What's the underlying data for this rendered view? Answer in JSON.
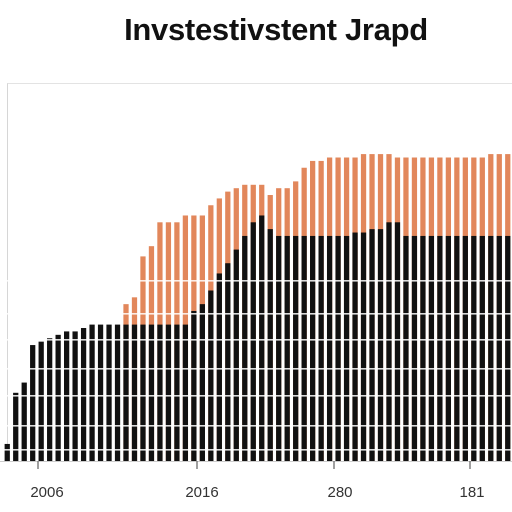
{
  "chart_data": {
    "type": "bar",
    "title": "Invstestivstent Jrapd",
    "xlabel": "",
    "ylabel": "",
    "tick_labels": [
      "2006",
      "2016",
      "280",
      "181"
    ],
    "grid": false,
    "legend": "none",
    "ylim": [
      0,
      100
    ],
    "series": [
      {
        "color": "#111111",
        "values": [
          5,
          20,
          23,
          34,
          35,
          36,
          37,
          38,
          38,
          39,
          40,
          40,
          40,
          40,
          40,
          40,
          40,
          40,
          40,
          40,
          40,
          40,
          44,
          46,
          50,
          55,
          58,
          62,
          66,
          70,
          72,
          68,
          66,
          66,
          66,
          66,
          66,
          66,
          66,
          66,
          66,
          67,
          67,
          68,
          68,
          70,
          70,
          66,
          66,
          66,
          66,
          66,
          66,
          66,
          66,
          66,
          66,
          66,
          66,
          66
        ]
      },
      {
        "color": "#e2875b",
        "values": [
          0,
          0,
          0,
          0,
          0,
          0,
          0,
          0,
          0,
          0,
          0,
          0,
          0,
          0,
          46,
          48,
          60,
          63,
          70,
          70,
          70,
          72,
          72,
          72,
          75,
          77,
          79,
          80,
          81,
          81,
          81,
          78,
          80,
          80,
          82,
          86,
          88,
          88,
          89,
          89,
          89,
          89,
          90,
          90,
          90,
          90,
          89,
          89,
          89,
          89,
          89,
          89,
          89,
          89,
          89,
          89,
          89,
          90,
          90,
          90
        ]
      }
    ]
  }
}
